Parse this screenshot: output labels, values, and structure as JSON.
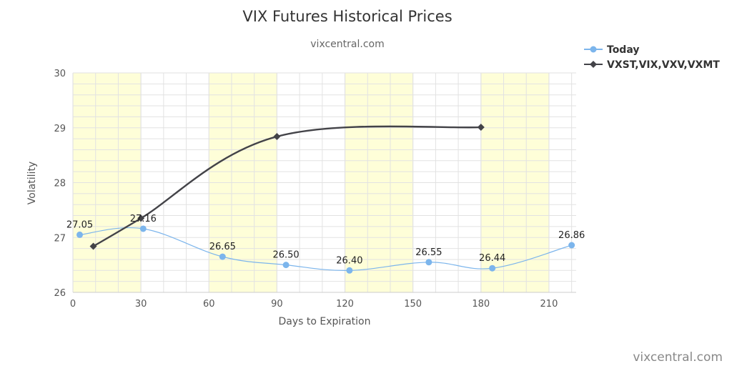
{
  "chart_data": {
    "type": "line",
    "title": "VIX Futures Historical Prices",
    "subtitle": "vixcentral.com",
    "xlabel": "Days to Expiration",
    "ylabel": "Volatility",
    "xlim": [
      0,
      222
    ],
    "ylim": [
      26,
      30
    ],
    "x_ticks": [
      0,
      30,
      60,
      90,
      120,
      150,
      180,
      210
    ],
    "y_ticks": [
      26,
      27,
      28,
      29,
      30
    ],
    "grid": true,
    "shaded_bands": [
      [
        0,
        30
      ],
      [
        60,
        90
      ],
      [
        120,
        150
      ],
      [
        180,
        210
      ]
    ],
    "legend_position": "top-right",
    "series": [
      {
        "name": "Today",
        "color": "#7cb5ec",
        "marker": "circle",
        "x": [
          3,
          31,
          66,
          94,
          122,
          157,
          185,
          220
        ],
        "y": [
          27.05,
          27.16,
          26.65,
          26.5,
          26.4,
          26.55,
          26.44,
          26.86
        ],
        "labels": [
          "27.05",
          "27.16",
          "26.65",
          "26.50",
          "26.40",
          "26.55",
          "26.44",
          "26.86"
        ]
      },
      {
        "name": "VXST,VIX,VXV,VXMT",
        "color": "#434348",
        "marker": "diamond",
        "x": [
          9,
          30,
          90,
          180
        ],
        "y": [
          26.84,
          27.35,
          28.84,
          29.01
        ]
      }
    ],
    "credit": "vixcentral.com",
    "colors": {
      "band": "#fefed8",
      "grid": "#e2e2e2",
      "axis": "#cccccc"
    }
  }
}
